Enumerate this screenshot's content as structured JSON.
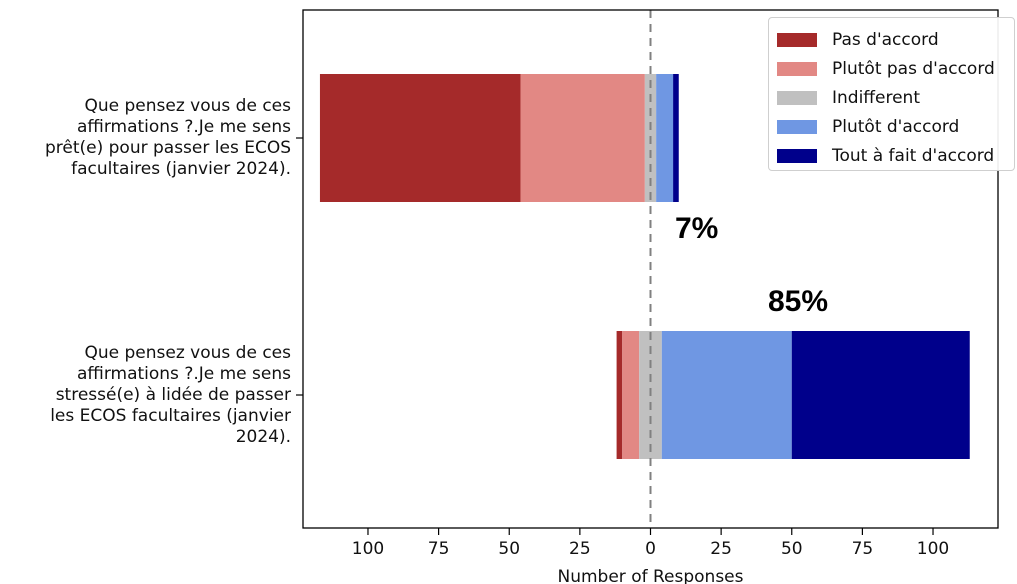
{
  "chart_data": {
    "type": "bar",
    "orientation": "horizontal",
    "stacked": "diverging",
    "xlabel": "Number of Responses",
    "ylabel": "",
    "title": "",
    "xlim": [
      -123,
      123
    ],
    "xticks": [
      -100,
      -75,
      -50,
      -25,
      0,
      25,
      50,
      75,
      100
    ],
    "xtick_labels": [
      "100",
      "75",
      "50",
      "25",
      "0",
      "25",
      "50",
      "75",
      "100"
    ],
    "categories": [
      [
        "Que pensez vous de ces",
        "affirmations ?.Je me sens",
        "prêt(e) pour passer les ECOS",
        "facultaires (janvier 2024)."
      ],
      [
        "Que pensez vous de ces",
        "affirmations ?.Je me sens",
        "stressé(e) à lidée de passer",
        "les ECOS facultaires (janvier",
        "2024)."
      ]
    ],
    "series": [
      {
        "name": "Pas d'accord",
        "color": "#a52a2a",
        "values": [
          71,
          2
        ]
      },
      {
        "name": "Plutôt pas d'accord",
        "color": "#e28884",
        "values": [
          44,
          6
        ]
      },
      {
        "name": "Indifferent",
        "color": "#c0c0c0",
        "values": [
          4,
          8
        ]
      },
      {
        "name": "Plutôt d'accord",
        "color": "#6f97e3",
        "values": [
          6,
          46
        ]
      },
      {
        "name": "Tout à fait d'accord",
        "color": "#00008b",
        "values": [
          2,
          63
        ]
      }
    ],
    "annotations": [
      {
        "text": "7%",
        "category_index": 0
      },
      {
        "text": "85%",
        "category_index": 1
      }
    ],
    "legend_position": "top-right",
    "center_line": "dashed"
  }
}
